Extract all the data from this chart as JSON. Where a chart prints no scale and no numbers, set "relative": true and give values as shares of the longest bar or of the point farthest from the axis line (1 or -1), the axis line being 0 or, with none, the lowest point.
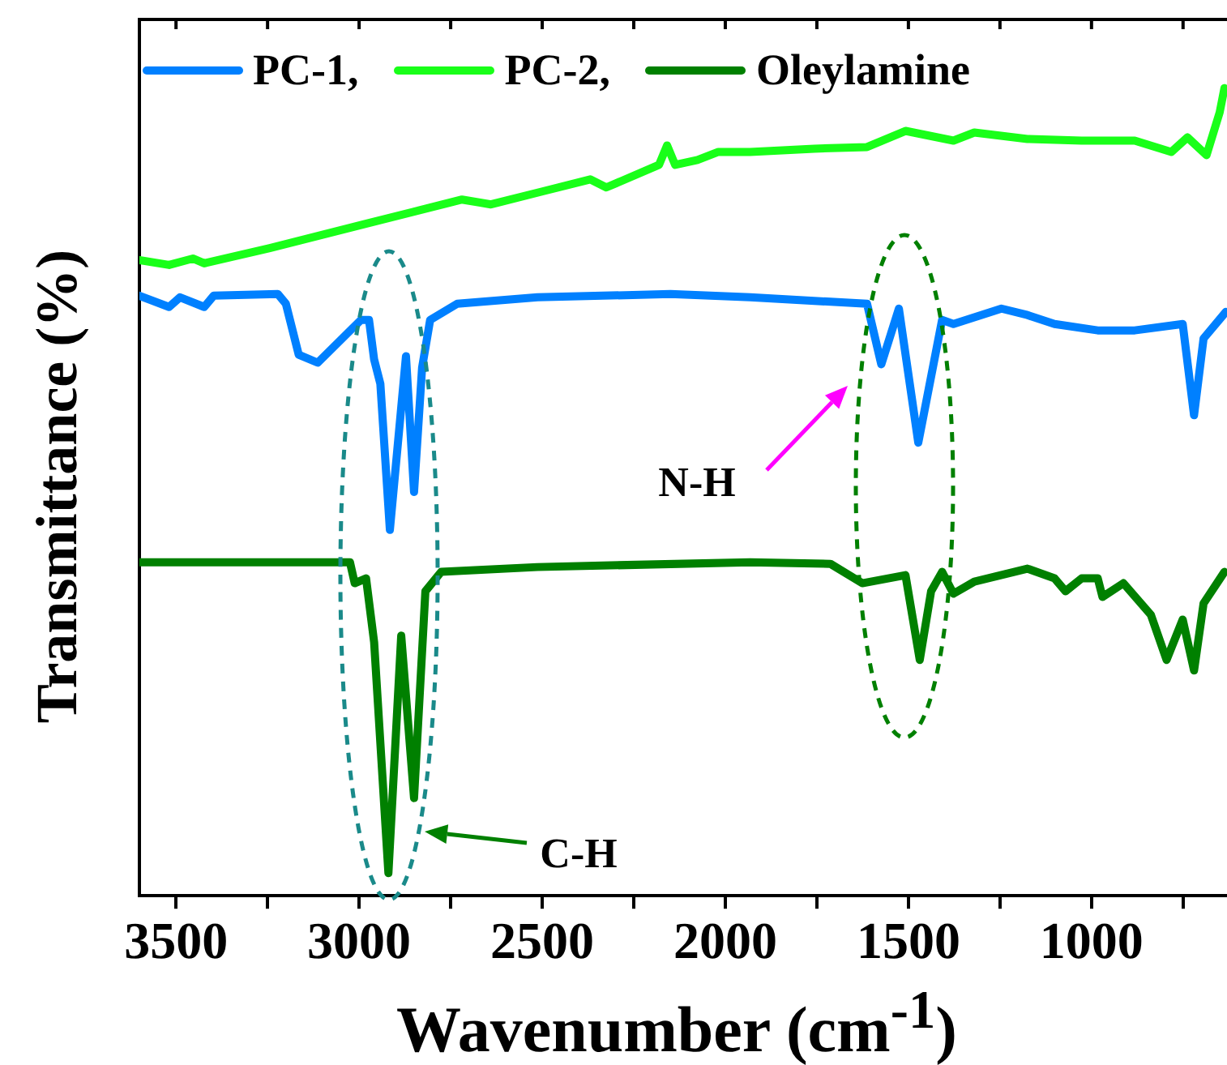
{
  "chart_data": {
    "type": "line",
    "xlabel": "Wavenumber (cm$^{-1}$)",
    "ylabel": "Transmittance (%)",
    "relative": true,
    "legend": "top left",
    "marker": "none",
    "line_style": "solid",
    "xlim": [
      3600,
      630
    ],
    "xticks": [
      3500,
      {
        "value": 3250,
        "label": null
      },
      3000,
      {
        "value": 2750,
        "label": null
      },
      2500,
      {
        "value": 2250,
        "label": null
      },
      2000,
      {
        "value": 1750,
        "label": null
      },
      1500,
      {
        "value": 1250,
        "label": null
      },
      1000,
      {
        "value": 750,
        "label": null
      }
    ],
    "series": [
      {
        "name": "PC-1,",
        "color": "#0080ff",
        "x": [
          3600,
          3519,
          3489,
          3423,
          3397,
          3222,
          3200,
          3165,
          3113,
          2995,
          2973,
          2959,
          2942,
          2916,
          2872,
          2850,
          2828,
          2806,
          2732,
          2513,
          2150,
          1932,
          1613,
          1574,
          1526,
          1473,
          1408,
          1377,
          1246,
          1175,
          1101,
          983,
          882,
          751,
          720,
          694,
          633
        ],
        "values": [
          0.743,
          0.729,
          0.741,
          0.729,
          0.743,
          0.745,
          0.733,
          0.67,
          0.66,
          0.713,
          0.713,
          0.664,
          0.634,
          0.453,
          0.668,
          0.5,
          0.654,
          0.713,
          0.733,
          0.741,
          0.745,
          0.741,
          0.733,
          0.658,
          0.727,
          0.561,
          0.713,
          0.708,
          0.727,
          0.719,
          0.708,
          0.7,
          0.7,
          0.708,
          0.595,
          0.69,
          0.723
        ]
      },
      {
        "name": "PC-2,",
        "color": "#19ff19",
        "x": [
          3600,
          3519,
          3454,
          3423,
          3244,
          2982,
          2719,
          2640,
          2500,
          2369,
          2325,
          2181,
          2159,
          2137,
          2076,
          2019,
          1932,
          1757,
          1613,
          1508,
          1377,
          1320,
          1175,
          1027,
          882,
          782,
          738,
          686,
          650,
          637
        ],
        "values": [
          0.787,
          0.781,
          0.789,
          0.783,
          0.802,
          0.832,
          0.862,
          0.856,
          0.872,
          0.887,
          0.877,
          0.905,
          0.929,
          0.905,
          0.911,
          0.921,
          0.921,
          0.925,
          0.927,
          0.947,
          0.935,
          0.945,
          0.937,
          0.935,
          0.935,
          0.921,
          0.939,
          0.917,
          0.97,
          1.0
        ]
      },
      {
        "name": "Oleylamine",
        "color": "#008000",
        "x": [
          3600,
          3025,
          3012,
          2981,
          2959,
          2920,
          2885,
          2850,
          2819,
          2776,
          2513,
          1932,
          1713,
          1626,
          1508,
          1469,
          1438,
          1408,
          1377,
          1320,
          1175,
          1101,
          1071,
          1027,
          983,
          970,
          913,
          838,
          795,
          751,
          720,
          694,
          637
        ],
        "values": [
          0.413,
          0.413,
          0.387,
          0.393,
          0.314,
          0.028,
          0.322,
          0.121,
          0.377,
          0.401,
          0.407,
          0.413,
          0.411,
          0.387,
          0.397,
          0.292,
          0.377,
          0.401,
          0.374,
          0.389,
          0.405,
          0.393,
          0.377,
          0.393,
          0.393,
          0.37,
          0.387,
          0.348,
          0.292,
          0.342,
          0.279,
          0.362,
          0.401
        ]
      }
    ],
    "annotations": [
      "N-H",
      "C-H"
    ]
  }
}
